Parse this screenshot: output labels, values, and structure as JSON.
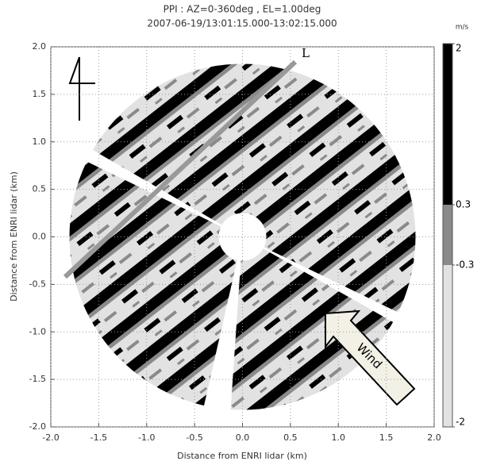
{
  "chart_data": {
    "type": "ppi",
    "title": "PPI : AZ=0-360deg , EL=1.00deg",
    "subtitle": "2007-06-19/13:01:15.000-13:02:15.000",
    "x_label": "Distance from ENRI lidar (km)",
    "y_label": "Distance from ENRI lidar (km)",
    "xlim": [
      -2,
      2
    ],
    "ylim": [
      -2,
      2
    ],
    "xticks": [
      {
        "value": -2,
        "label": "-2.0"
      },
      {
        "value": -1.5,
        "label": "-1.5"
      },
      {
        "value": -1,
        "label": "-1.0"
      },
      {
        "value": -0.5,
        "label": "-0.5"
      },
      {
        "value": 0,
        "label": "0.0"
      },
      {
        "value": 0.5,
        "label": "0.5"
      },
      {
        "value": 1,
        "label": "1.0"
      },
      {
        "value": 1.5,
        "label": "1.5"
      },
      {
        "value": 2,
        "label": "2.0"
      }
    ],
    "yticks": [
      {
        "value": -2,
        "label": "-2.0"
      },
      {
        "value": -1.5,
        "label": "-1.5"
      },
      {
        "value": -1,
        "label": "-1.0"
      },
      {
        "value": -0.5,
        "label": "-0.5"
      },
      {
        "value": 0,
        "label": "0.0"
      },
      {
        "value": 0.5,
        "label": "0.5"
      },
      {
        "value": 1,
        "label": "1.0"
      },
      {
        "value": 1.5,
        "label": "1.5"
      },
      {
        "value": 2,
        "label": "2.0"
      }
    ],
    "grid": true,
    "colorbar": {
      "unit": "m/s",
      "ticks": [
        2,
        0.3,
        -0.3,
        -2
      ],
      "colors": [
        "#000000",
        "#8a8a8a",
        "#e2e2e2"
      ]
    },
    "annotations": [
      "L",
      "Wind"
    ]
  }
}
